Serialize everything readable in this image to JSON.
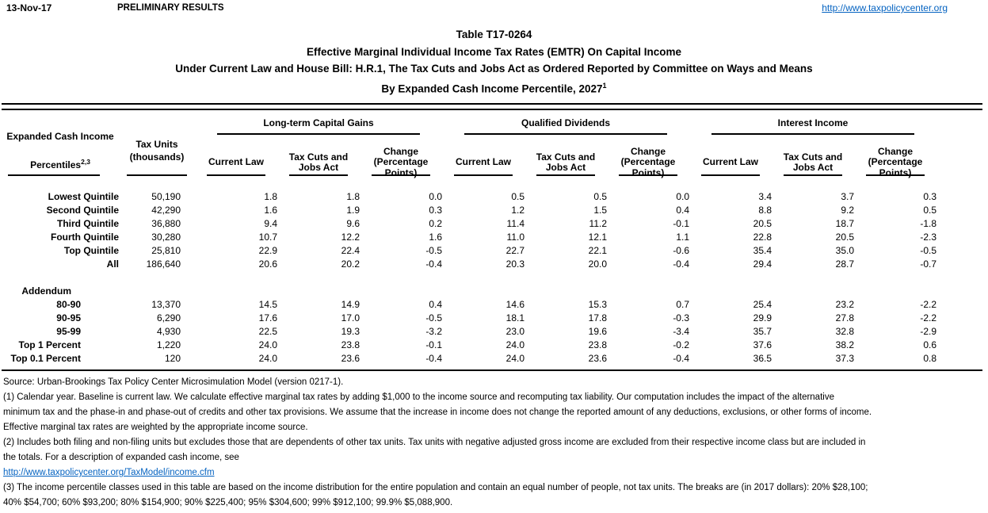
{
  "header": {
    "date": "13-Nov-17",
    "status": "PRELIMINARY RESULTS",
    "site_link": "http://www.taxpolicycenter.org"
  },
  "title": {
    "line1": "Table T17-0264",
    "line2": "Effective Marginal Individual Income Tax Rates (EMTR) On Capital Income",
    "line3": "Under Current Law and House Bill: H.R.1, The Tax Cuts and Jobs Act as Ordered Reported by Committee on Ways and Means",
    "line4": "By Expanded Cash Income Percentile, 2027",
    "line4_sup": "1"
  },
  "table": {
    "row_header": {
      "line1": "Expanded Cash Income",
      "line2": "Percentiles",
      "sup": "2,3"
    },
    "tax_units_header": "Tax Units\n(thousands)",
    "groups": [
      {
        "label": "Long-term Capital Gains"
      },
      {
        "label": "Qualified Dividends"
      },
      {
        "label": "Interest Income"
      }
    ],
    "sub_headers": [
      "Current Law",
      "Tax Cuts and\nJobs Act",
      "Change\n(Percentage\nPoints)"
    ],
    "rows": [
      {
        "type": "data",
        "label": "Lowest Quintile",
        "tax_units": "50,190",
        "values": [
          "1.8",
          "1.8",
          "0.0",
          "0.5",
          "0.5",
          "0.0",
          "3.4",
          "3.7",
          "0.3"
        ]
      },
      {
        "type": "data",
        "label": "Second Quintile",
        "tax_units": "42,290",
        "values": [
          "1.6",
          "1.9",
          "0.3",
          "1.2",
          "1.5",
          "0.4",
          "8.8",
          "9.2",
          "0.5"
        ]
      },
      {
        "type": "data",
        "label": "Third Quintile",
        "tax_units": "36,880",
        "values": [
          "9.4",
          "9.6",
          "0.2",
          "11.4",
          "11.2",
          "-0.1",
          "20.5",
          "18.7",
          "-1.8"
        ]
      },
      {
        "type": "data",
        "label": "Fourth Quintile",
        "tax_units": "30,280",
        "values": [
          "10.7",
          "12.2",
          "1.6",
          "11.0",
          "12.1",
          "1.1",
          "22.8",
          "20.5",
          "-2.3"
        ]
      },
      {
        "type": "data",
        "label": "Top Quintile",
        "tax_units": "25,810",
        "values": [
          "22.9",
          "22.4",
          "-0.5",
          "22.7",
          "22.1",
          "-0.6",
          "35.4",
          "35.0",
          "-0.5"
        ]
      },
      {
        "type": "data",
        "label": "All",
        "tax_units": "186,640",
        "values": [
          "20.6",
          "20.2",
          "-0.4",
          "20.3",
          "20.0",
          "-0.4",
          "29.4",
          "28.7",
          "-0.7"
        ]
      },
      {
        "type": "blank"
      },
      {
        "type": "section",
        "label": "Addendum"
      },
      {
        "type": "data",
        "indent": true,
        "label": "80-90",
        "tax_units": "13,370",
        "values": [
          "14.5",
          "14.9",
          "0.4",
          "14.6",
          "15.3",
          "0.7",
          "25.4",
          "23.2",
          "-2.2"
        ]
      },
      {
        "type": "data",
        "indent": true,
        "label": "90-95",
        "tax_units": "6,290",
        "values": [
          "17.6",
          "17.0",
          "-0.5",
          "18.1",
          "17.8",
          "-0.3",
          "29.9",
          "27.8",
          "-2.2"
        ]
      },
      {
        "type": "data",
        "indent": true,
        "label": "95-99",
        "tax_units": "4,930",
        "values": [
          "22.5",
          "19.3",
          "-3.2",
          "23.0",
          "19.6",
          "-3.4",
          "35.7",
          "32.8",
          "-2.9"
        ]
      },
      {
        "type": "data",
        "indent": true,
        "label": "Top 1 Percent",
        "tax_units": "1,220",
        "values": [
          "24.0",
          "23.8",
          "-0.1",
          "24.0",
          "23.8",
          "-0.2",
          "37.6",
          "38.2",
          "0.6"
        ]
      },
      {
        "type": "data",
        "indent": true,
        "label": "Top 0.1 Percent",
        "tax_units": "120",
        "values": [
          "24.0",
          "23.6",
          "-0.4",
          "24.0",
          "23.6",
          "-0.4",
          "36.5",
          "37.3",
          "0.8"
        ]
      }
    ]
  },
  "footnotes": {
    "lines": [
      {
        "text": "Source: Urban-Brookings Tax Policy Center Microsimulation Model (version 0217-1).",
        "link": false
      },
      {
        "text": "(1) Calendar year. Baseline is current law. We calculate effective marginal tax rates by adding $1,000 to the income source and recomputing tax liability. Our computation includes the impact of the alternative",
        "link": false
      },
      {
        "text": "minimum tax and the phase-in and phase-out of credits and other tax provisions. We assume that the increase in income does not change the reported amount of any deductions, exclusions, or other forms of income.",
        "link": false
      },
      {
        "text": "Effective marginal tax rates are weighted by the appropriate income source.",
        "link": false
      },
      {
        "text": "(2) Includes both filing and non-filing units but excludes those that are dependents of other tax units. Tax units with negative adjusted gross income are excluded from their respective income class but are included in",
        "link": false
      },
      {
        "text": "the totals. For a description of expanded cash income, see",
        "link": false
      },
      {
        "text": "http://www.taxpolicycenter.org/TaxModel/income.cfm",
        "link": true
      },
      {
        "text": "(3) The income percentile classes used in this table are based on the income distribution for the entire population and contain an equal number of people, not tax units. The breaks are (in 2017 dollars): 20% $28,100;",
        "link": false
      },
      {
        "text": "40% $54,700; 60% $93,200; 80% $154,900; 90% $225,400; 95% $304,600; 99% $912,100; 99.9% $5,088,900.",
        "link": false
      }
    ]
  },
  "colors": {
    "link_blue": "#0563C1",
    "text": "#000000",
    "rule": "#000000"
  }
}
